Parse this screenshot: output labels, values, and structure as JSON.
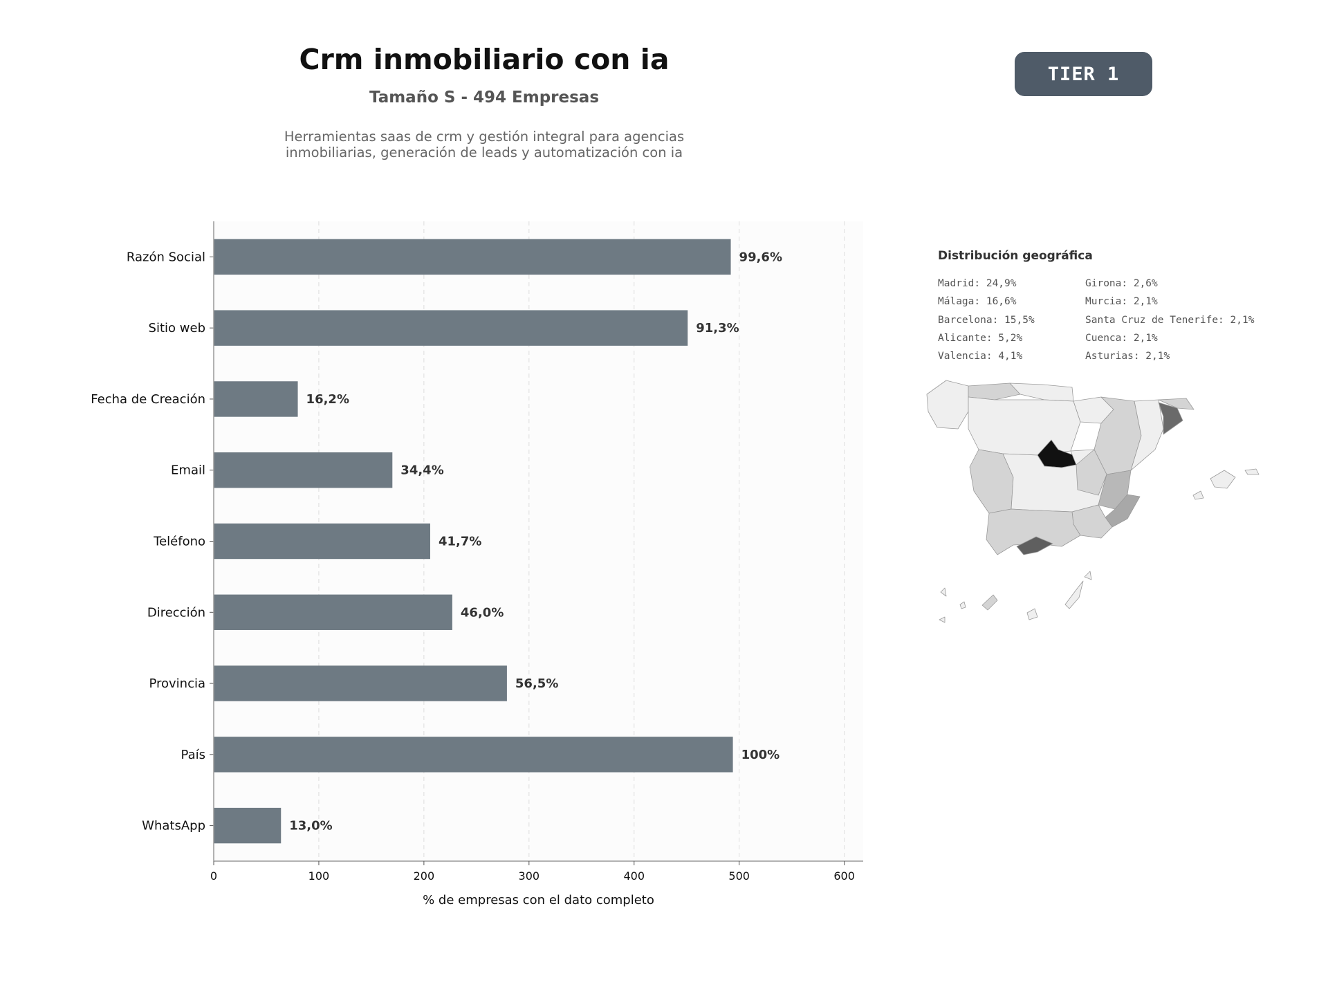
{
  "header": {
    "title": "Crm inmobiliario con ia",
    "subtitle": "Tamaño S - 494 Empresas",
    "description_line1": "Herramientas saas de crm y gestión integral para agencias",
    "description_line2": "inmobiliarias, generación de leads y automatización con ia",
    "tier_badge": "TIER 1"
  },
  "colors": {
    "bar": "#6e7a83",
    "badge": "#4f5b68",
    "plot_background": "#fcfcfc"
  },
  "chart_data": {
    "type": "bar",
    "orientation": "horizontal",
    "categories": [
      "Razón Social",
      "Sitio web",
      "Fecha de Creación",
      "Email",
      "Teléfono",
      "Dirección",
      "Provincia",
      "País",
      "WhatsApp"
    ],
    "values": [
      492,
      451,
      80,
      170,
      206,
      227,
      279,
      494,
      64
    ],
    "value_labels": [
      "99,6%",
      "91,3%",
      "16,2%",
      "34,4%",
      "41,7%",
      "46,0%",
      "56,5%",
      "100%",
      "13,0%"
    ],
    "xlabel": "% de empresas con el dato completo",
    "ylabel": "",
    "xlim": [
      0,
      618
    ],
    "xticks": [
      0,
      100,
      200,
      300,
      400,
      500,
      600
    ],
    "grid": "vertical dashed"
  },
  "geo": {
    "title": "Distribución geográfica",
    "left_column": [
      "Madrid: 24,9%",
      "Málaga: 16,6%",
      "Barcelona: 15,5%",
      "Alicante: 5,2%",
      "Valencia: 4,1%"
    ],
    "right_column": [
      "Girona: 2,6%",
      "Murcia: 2,1%",
      "Santa Cruz de Tenerife: 2,1%",
      "Cuenca: 2,1%",
      "Asturias: 2,1%"
    ],
    "map_shades": {
      "Madrid": "#111111",
      "Málaga": "#5f5f5f",
      "Barcelona": "#6a6a6a",
      "Alicante": "#a8a8a8",
      "Valencia": "#b8b8b8",
      "other_with_data": "#d4d4d4",
      "no_data": "#efefef"
    }
  }
}
